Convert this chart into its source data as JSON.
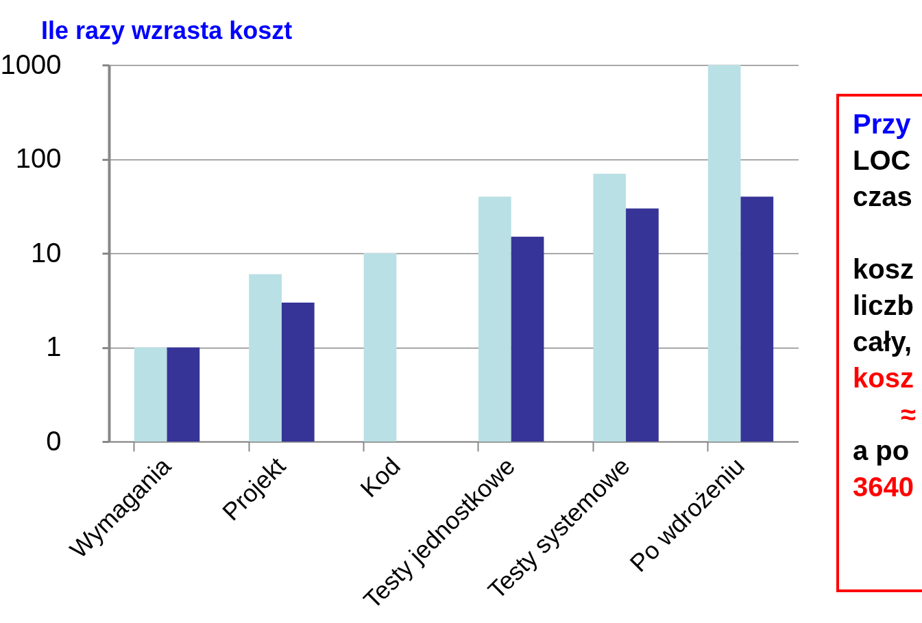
{
  "chart_data": {
    "type": "bar",
    "title": "Ile razy wzrasta koszt",
    "categories": [
      "Wymagania",
      "Projekt",
      "Kod",
      "Testy jednostkowe",
      "Testy systemowe",
      "Po wdrożeniu"
    ],
    "series": [
      {
        "color": "#b9e0e4",
        "values": [
          1,
          6,
          10,
          40,
          70,
          1000
        ]
      },
      {
        "color": "#363497",
        "values": [
          1,
          3,
          null,
          15,
          30,
          40
        ]
      }
    ],
    "log": true,
    "ylim": [
      0.1,
      1000
    ],
    "yticks": [
      {
        "value": 0.1,
        "label": "0"
      },
      1,
      10,
      100,
      1000
    ],
    "grid": "y",
    "legend": false,
    "annotations": [
      "Przy",
      "LOC",
      "czas",
      "kosz",
      "liczb",
      "cały,",
      "kosz",
      "≈",
      "a po",
      "3640"
    ]
  }
}
